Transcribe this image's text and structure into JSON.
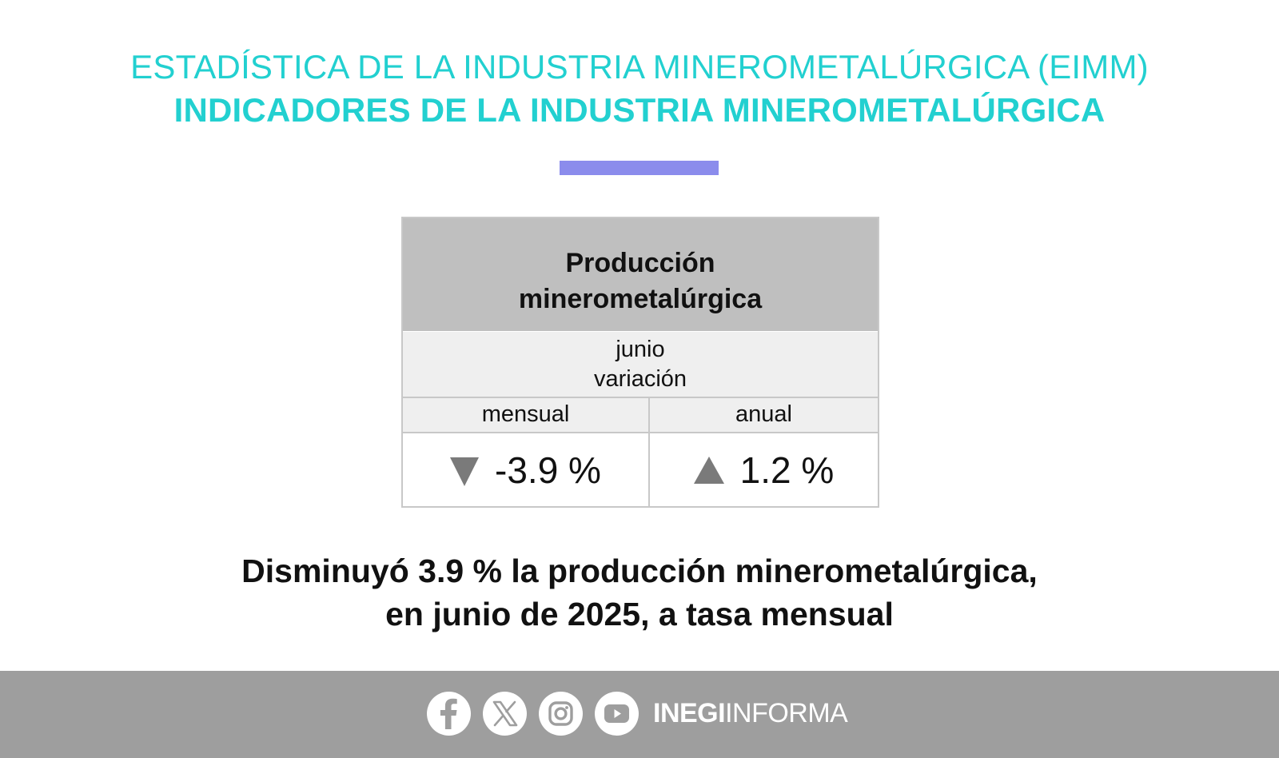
{
  "header": {
    "title_line1": "ESTADÍSTICA DE LA INDUSTRIA MINEROMETALÚRGICA (EIMM)",
    "title_line2": "INDICADORES DE LA INDUSTRIA MINEROMETALÚRGICA",
    "accent_color": "#22d0d0",
    "bar_color": "#8b8cec"
  },
  "table": {
    "title_line1": "Producción",
    "title_line2": "minerometalúrgica",
    "period": "junio",
    "measure": "variación",
    "columns": [
      {
        "label": "mensual",
        "value": "-3.9 %",
        "trend_icon": "triangle-down-icon"
      },
      {
        "label": "anual",
        "value": "1.2 %",
        "trend_icon": "triangle-up-icon"
      }
    ]
  },
  "headline": {
    "line1": "Disminuyó 3.9 % la producción minerometalúrgica,",
    "line2": "en junio de 2025, a tasa mensual"
  },
  "footer": {
    "social_icons": [
      "facebook-icon",
      "x-icon",
      "instagram-icon",
      "youtube-icon"
    ],
    "brand_bold": "INEGI",
    "brand_light": "INFORMA",
    "background_color": "#9e9e9e"
  }
}
